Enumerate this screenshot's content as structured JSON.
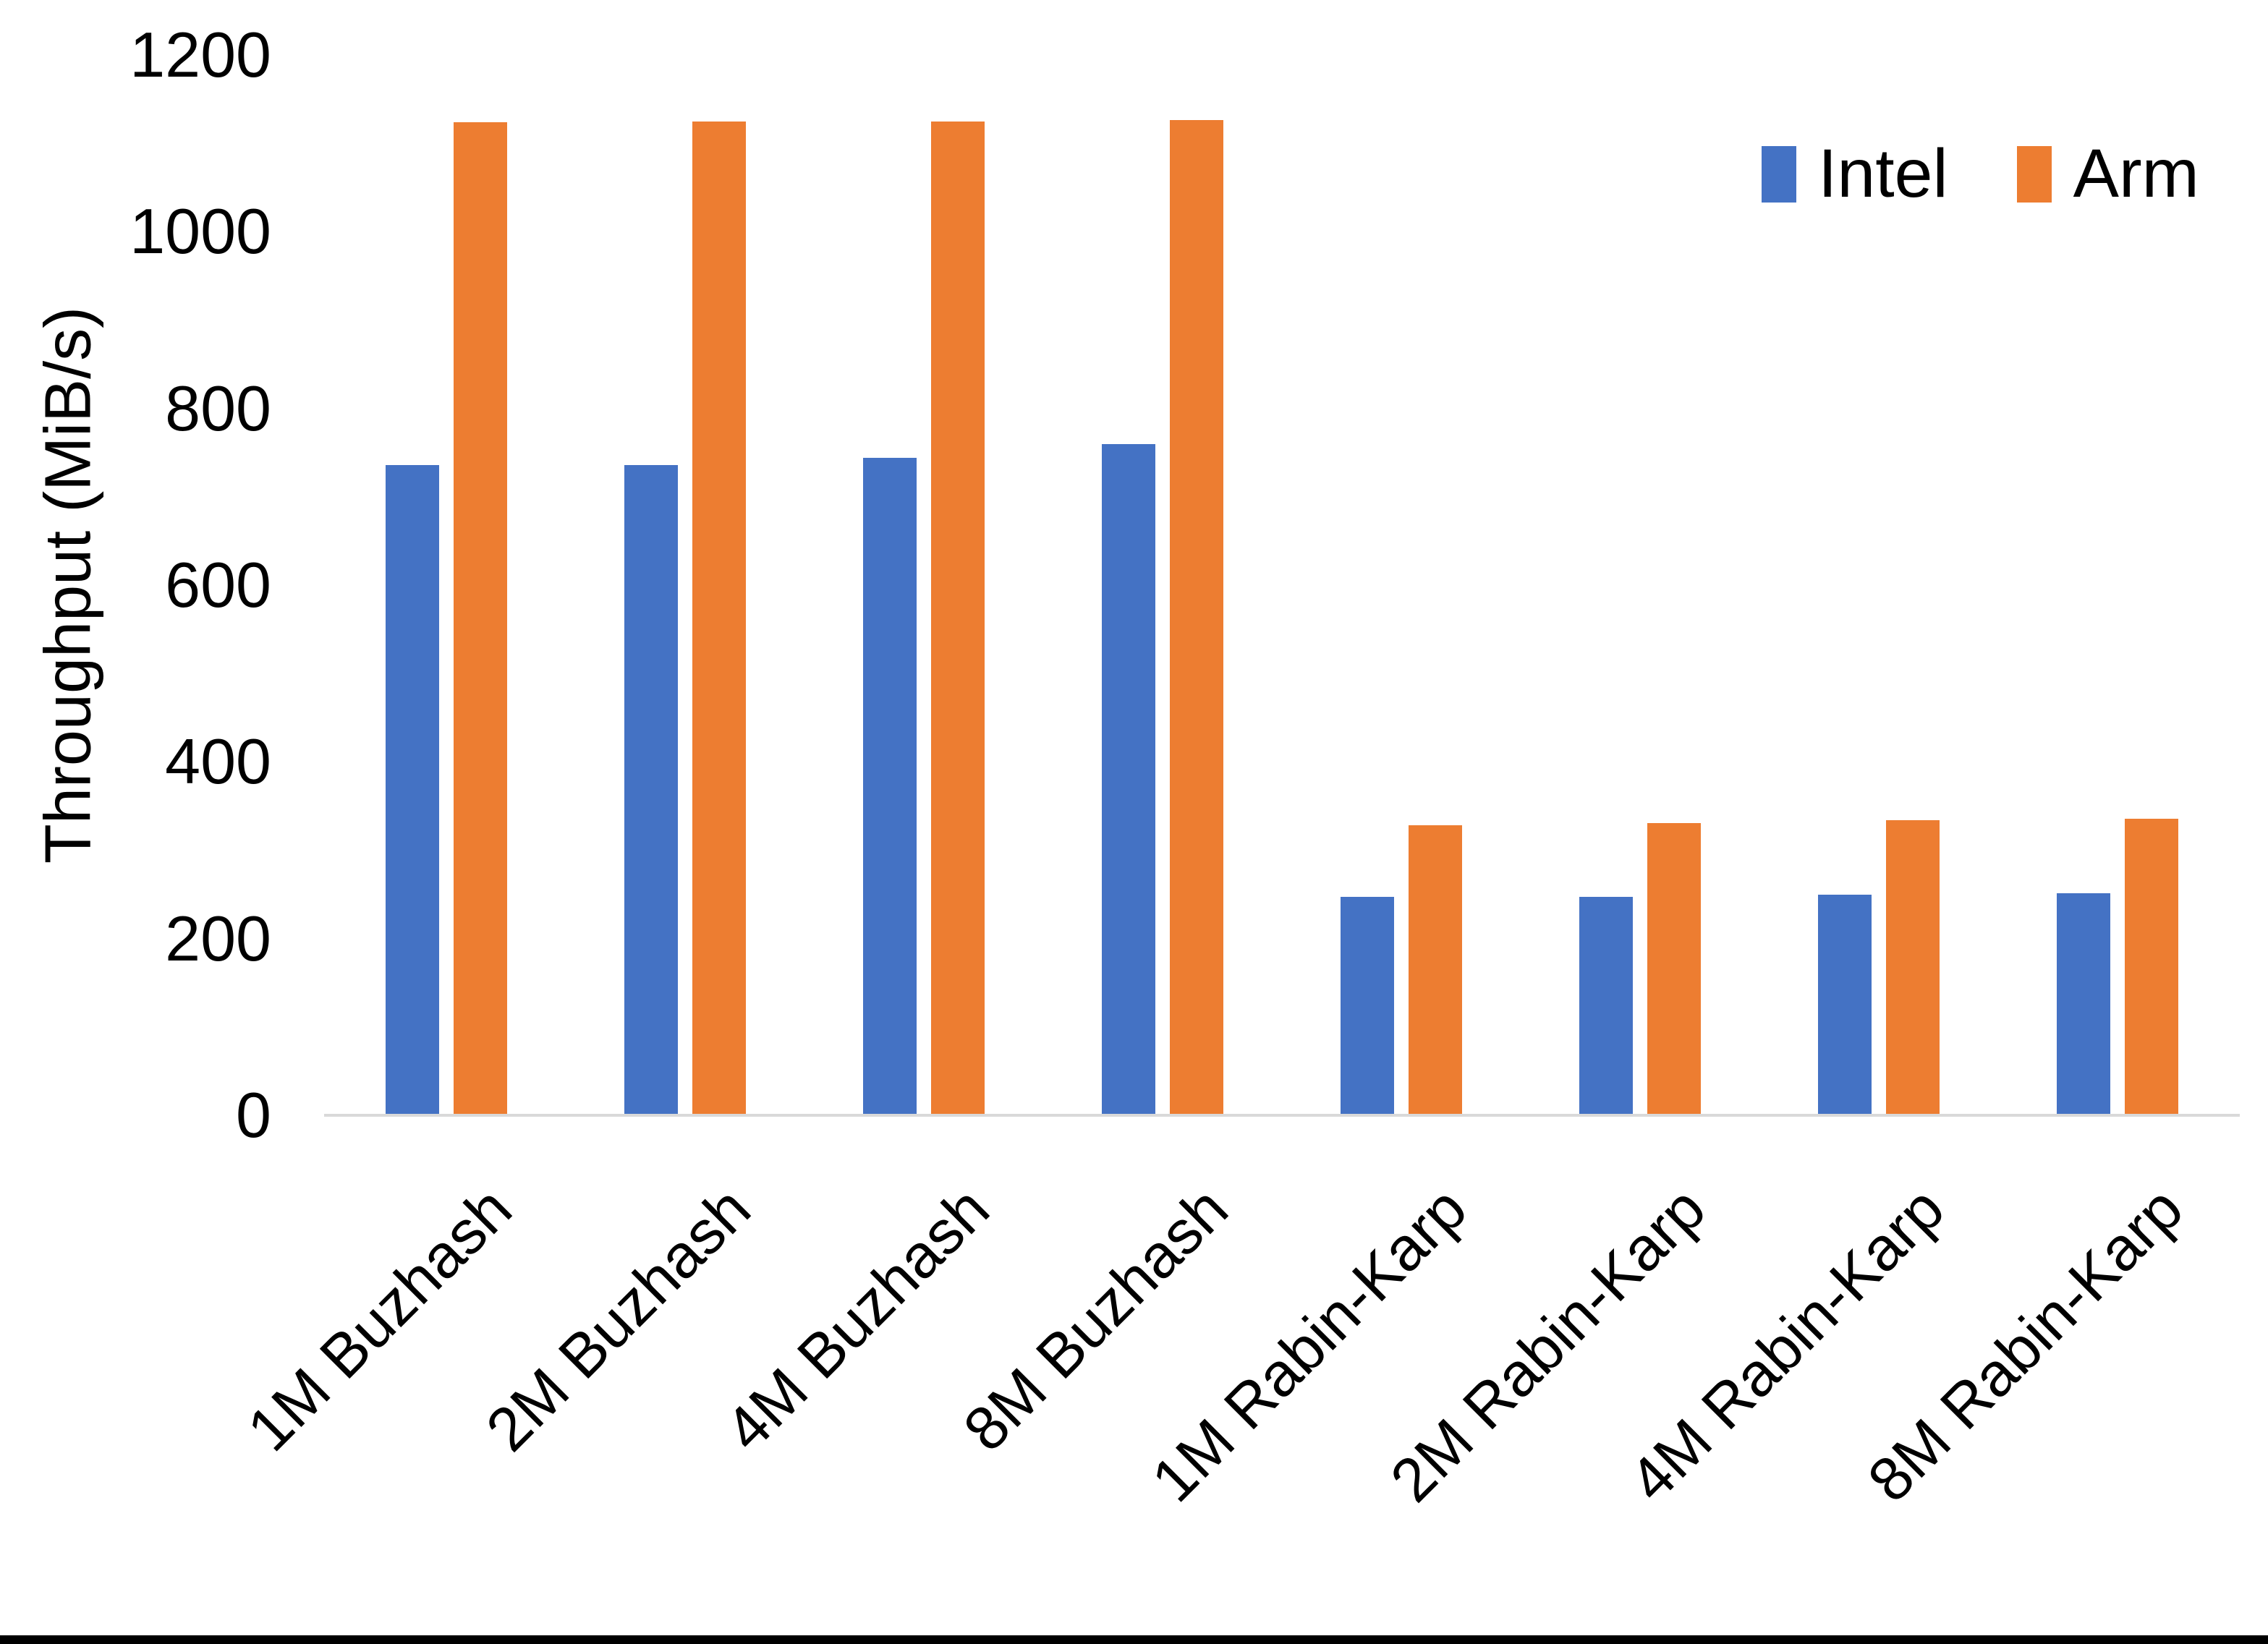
{
  "chart_data": {
    "type": "bar",
    "title": "",
    "ylabel": "Throughput (MiB/s)",
    "ylim": [
      0,
      1200
    ],
    "yticks": [
      0,
      200,
      400,
      600,
      800,
      1000,
      1200
    ],
    "grid": false,
    "legend_position": "top-right",
    "categories": [
      "1M Buzhash",
      "2M Buzhash",
      "4M Buzhash",
      "8M Buzhash",
      "1M Rabin-Karp",
      "2M Rabin-Karp",
      "4M Rabin-Karp",
      "8M Rabin-Karp"
    ],
    "series": [
      {
        "name": "Intel",
        "color": "#4472C4",
        "values": [
          736,
          736,
          744,
          760,
          247,
          247,
          250,
          251
        ]
      },
      {
        "name": "Arm",
        "color": "#ED7D31",
        "values": [
          1124,
          1125,
          1125,
          1126,
          328,
          331,
          334,
          336
        ]
      }
    ]
  },
  "colors": {
    "background": "#FFFFFF",
    "axis_line": "#D9D9D9",
    "text": "#000000",
    "bottom_border": "#000000"
  }
}
